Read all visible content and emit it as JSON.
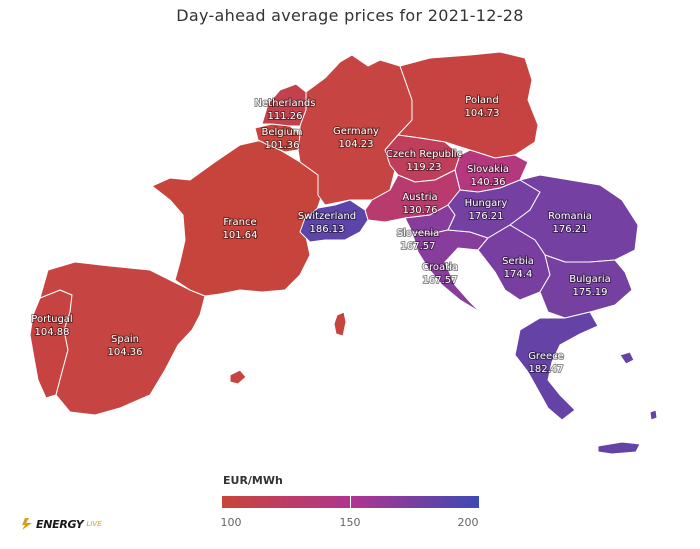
{
  "title": "Day-ahead average prices for 2021-12-28",
  "legend": {
    "title": "EUR/MWh",
    "ticks": [
      "100",
      "150",
      "200"
    ],
    "min": 100,
    "mid": 150,
    "max": 200,
    "color_low": "#c8453a",
    "color_mid": "#b0358f",
    "color_high": "#3d4ab3"
  },
  "logo": {
    "text": "ENERGY",
    "sub": "LIVE"
  },
  "countries": [
    {
      "id": "portugal",
      "name": "Portugal",
      "value": "104.88",
      "price": 104.88
    },
    {
      "id": "spain",
      "name": "Spain",
      "value": "104.36",
      "price": 104.36
    },
    {
      "id": "france",
      "name": "France",
      "value": "101.64",
      "price": 101.64
    },
    {
      "id": "belgium",
      "name": "Belgium",
      "value": "101.36",
      "price": 101.36
    },
    {
      "id": "netherlands",
      "name": "Netherlands",
      "value": "111.26",
      "price": 111.26
    },
    {
      "id": "germany",
      "name": "Germany",
      "value": "104.23",
      "price": 104.23
    },
    {
      "id": "poland",
      "name": "Poland",
      "value": "104.73",
      "price": 104.73
    },
    {
      "id": "czech-republic",
      "name": "Czech Republic",
      "value": "119.23",
      "price": 119.23
    },
    {
      "id": "slovakia",
      "name": "Slovakia",
      "value": "140.36",
      "price": 140.36
    },
    {
      "id": "austria",
      "name": "Austria",
      "value": "130.76",
      "price": 130.76
    },
    {
      "id": "switzerland",
      "name": "Switzerland",
      "value": "186.13",
      "price": 186.13
    },
    {
      "id": "slovenia",
      "name": "Slovenia",
      "value": "167.57",
      "price": 167.57
    },
    {
      "id": "croatia",
      "name": "Croatia",
      "value": "167.57",
      "price": 167.57
    },
    {
      "id": "hungary",
      "name": "Hungary",
      "value": "176.21",
      "price": 176.21
    },
    {
      "id": "romania",
      "name": "Romania",
      "value": "176.21",
      "price": 176.21
    },
    {
      "id": "serbia",
      "name": "Serbia",
      "value": "174.4",
      "price": 174.4
    },
    {
      "id": "bulgaria",
      "name": "Bulgaria",
      "value": "175.19",
      "price": 175.19
    },
    {
      "id": "greece",
      "name": "Greece",
      "value": "182.47",
      "price": 182.47
    }
  ]
}
